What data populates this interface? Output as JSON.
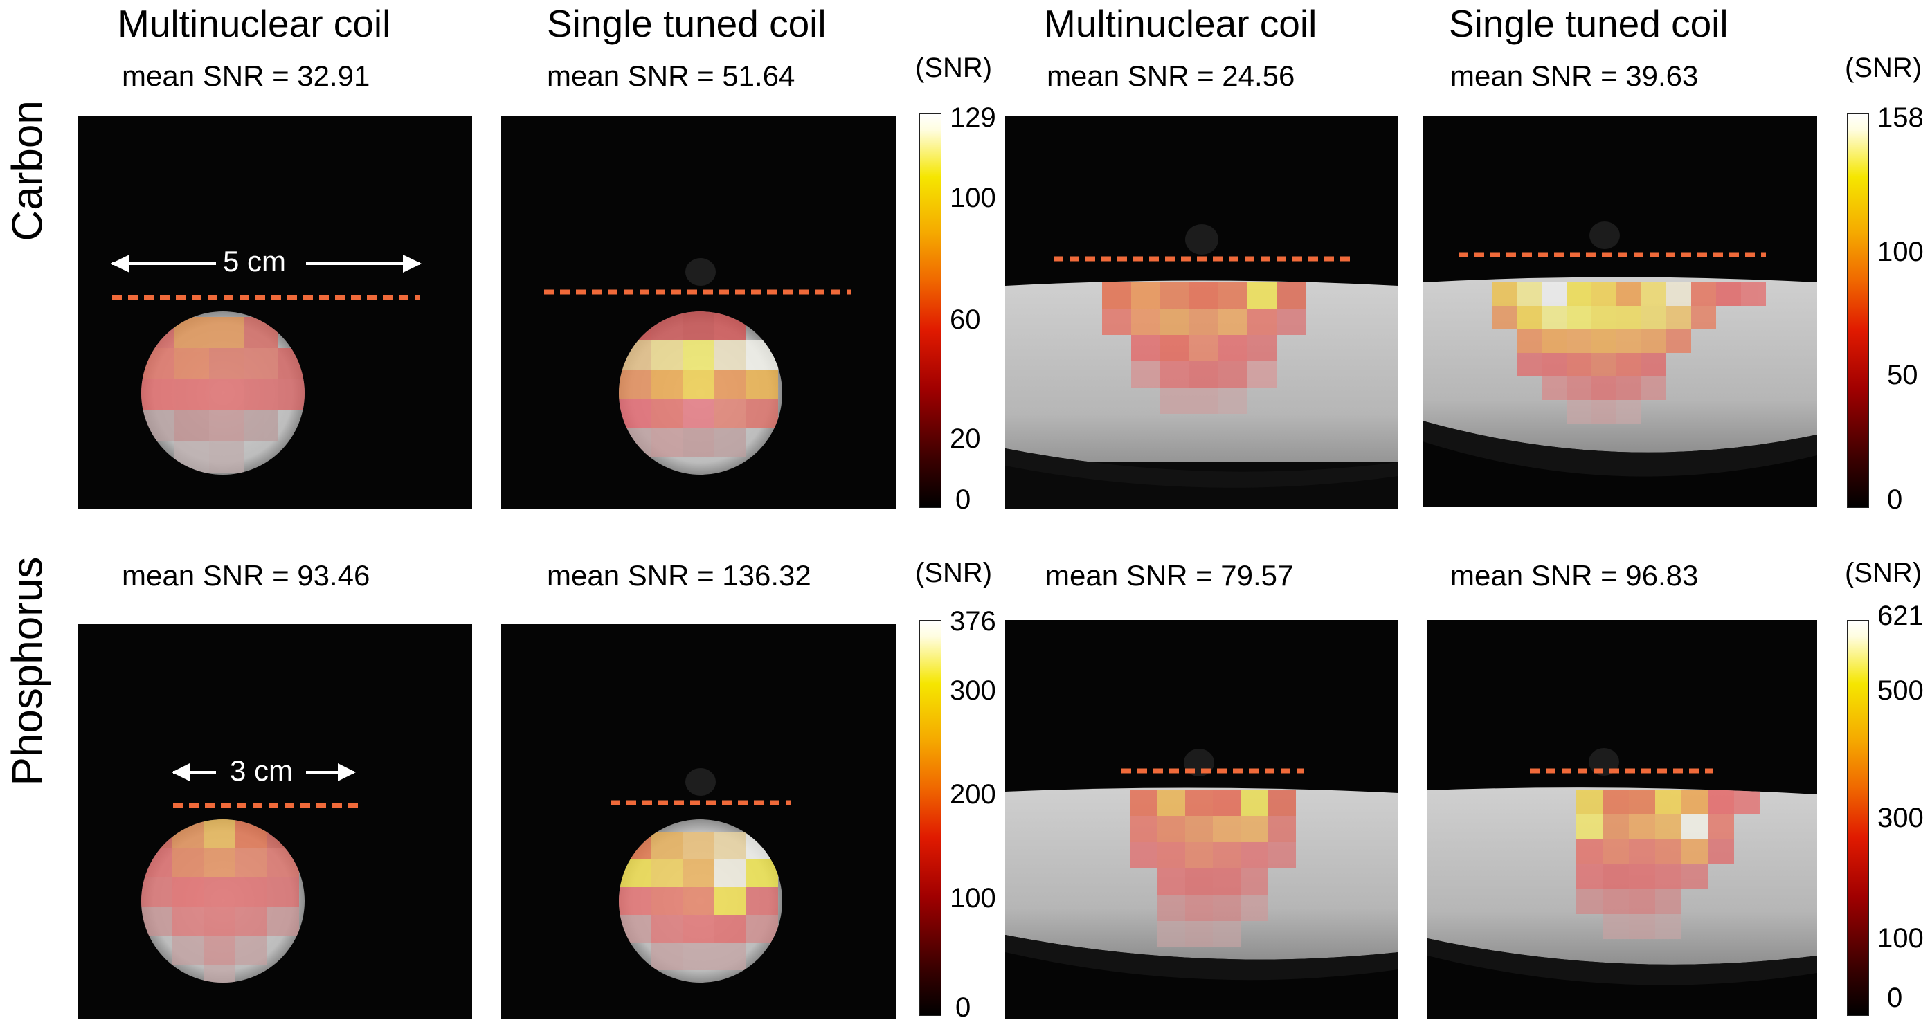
{
  "row_labels": [
    "Carbon",
    "Phosphorus"
  ],
  "column_titles": [
    "Multinuclear coil",
    "Single tuned coil",
    "Multinuclear coil",
    "Single tuned coil"
  ],
  "snr_unit": "(SNR)",
  "carbon": {
    "mean_snr": [
      "mean SNR = 32.91",
      "mean SNR = 51.64",
      "mean SNR = 24.56",
      "mean SNR = 39.63"
    ],
    "colorbar_left_ticks": [
      "129",
      "100",
      "60",
      "20",
      "0"
    ],
    "colorbar_right_ticks": [
      "158",
      "100",
      "50",
      "0"
    ],
    "scale_label": "5 cm"
  },
  "phosphorus": {
    "mean_snr": [
      "mean SNR = 93.46",
      "mean SNR = 136.32",
      "mean SNR = 79.57",
      "mean SNR = 96.83"
    ],
    "colorbar_left_ticks": [
      "376",
      "300",
      "200",
      "100",
      "0"
    ],
    "colorbar_right_ticks": [
      "621",
      "500",
      "300",
      "100",
      "0"
    ],
    "scale_label": "3 cm"
  },
  "colors": {
    "dashed_line": "#f06a3a",
    "background": "#050505",
    "phantom": "#b9b9b9"
  }
}
